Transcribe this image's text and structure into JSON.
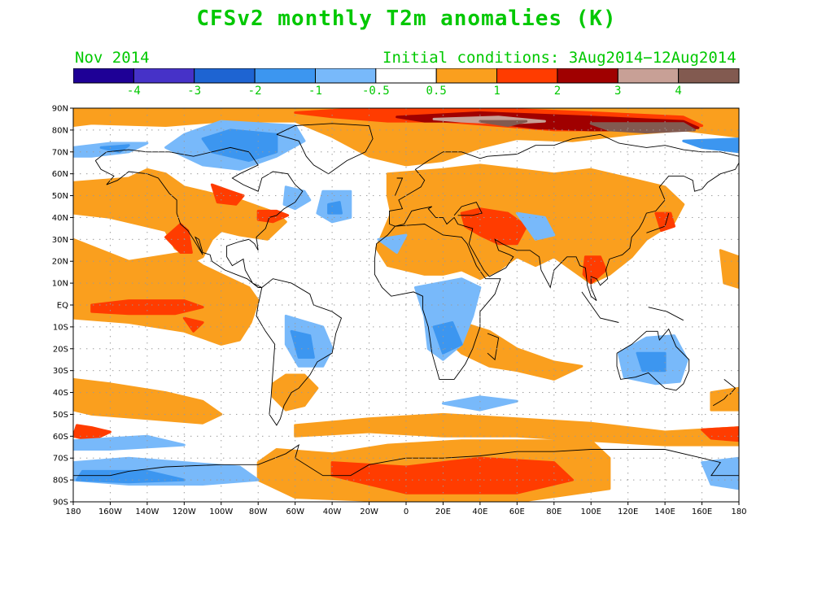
{
  "title": "CFSv2 monthly T2m anomalies (K)",
  "subtitle_left": "Nov 2014",
  "subtitle_right": "Initial conditions: 3Aug2014−12Aug2014",
  "colors": {
    "text_green": "#00c800",
    "bins": [
      "#1e0096",
      "#4632c8",
      "#1e64d2",
      "#3c96f0",
      "#78b9fa",
      "#ffffff",
      "#fa9f1e",
      "#ff3c00",
      "#a00000",
      "#c8a096",
      "#825a50"
    ]
  },
  "colorbar": {
    "labels": [
      "-4",
      "-3",
      "-2",
      "-1",
      "-0.5",
      "0.5",
      "1",
      "2",
      "3",
      "4"
    ]
  },
  "map": {
    "lat_labels": [
      "90N",
      "80N",
      "70N",
      "60N",
      "50N",
      "40N",
      "30N",
      "20N",
      "10N",
      "EQ",
      "10S",
      "20S",
      "30S",
      "40S",
      "50S",
      "60S",
      "70S",
      "80S",
      "90S"
    ],
    "lon_labels": [
      "180",
      "160W",
      "140W",
      "120W",
      "100W",
      "80W",
      "60W",
      "40W",
      "20W",
      "0",
      "20E",
      "40E",
      "60E",
      "80E",
      "100E",
      "120E",
      "140E",
      "160E",
      "180"
    ]
  }
}
